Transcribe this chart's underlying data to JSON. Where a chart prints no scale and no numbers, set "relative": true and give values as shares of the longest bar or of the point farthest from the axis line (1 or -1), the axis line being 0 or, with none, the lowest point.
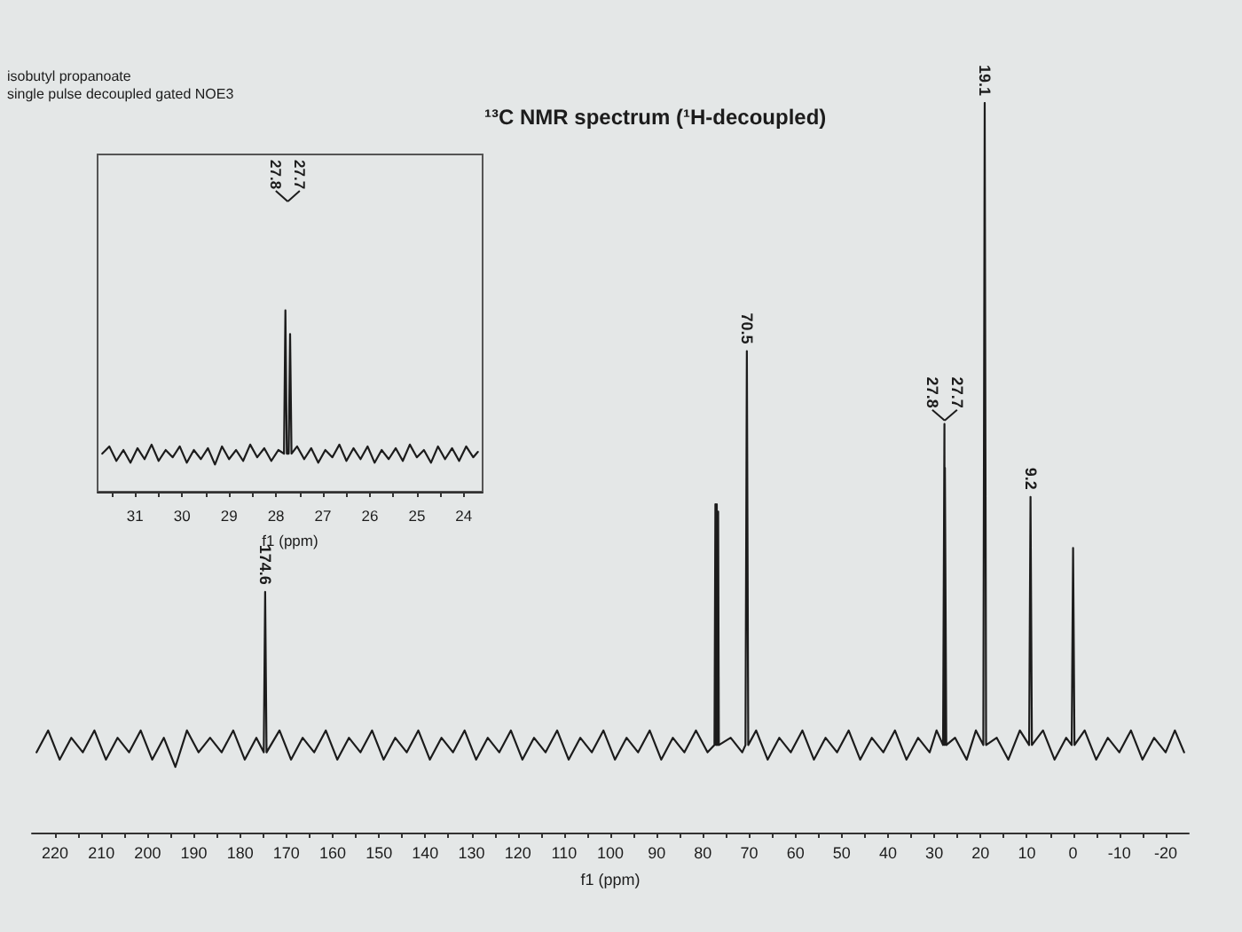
{
  "chart_data": [
    {
      "type": "line",
      "title": "¹³C NMR spectrum (¹H-decoupled)",
      "xlabel": "f1 (ppm)",
      "relative": true,
      "color": "#1c1c1c",
      "tick_labels": "x",
      "x": [
        224,
        221.5,
        219,
        216.5,
        214,
        211.5,
        209,
        206.5,
        204,
        201.5,
        199,
        196.5,
        194,
        191.5,
        189,
        186.5,
        184,
        181.5,
        179,
        176.5,
        174.9,
        174.6,
        174.3,
        171.5,
        169,
        166.5,
        164,
        161.5,
        159,
        156.5,
        154,
        151.5,
        149,
        146.5,
        144,
        141.5,
        139,
        136.5,
        134,
        131.5,
        129,
        126.5,
        124,
        121.5,
        119,
        116.5,
        114,
        111.5,
        109,
        106.5,
        104,
        101.5,
        99,
        96.5,
        94,
        91.5,
        89,
        86.5,
        84,
        81.5,
        79,
        77.5,
        77.3,
        77.15,
        77,
        76.85,
        76.7,
        76.55,
        74,
        71.5,
        70.8,
        70.5,
        70.2,
        68.5,
        66,
        63.5,
        61,
        58.5,
        56,
        53.5,
        51,
        48.5,
        46,
        43.5,
        41,
        38.5,
        36,
        33.5,
        31,
        29.5,
        28.1,
        27.8,
        27.75,
        27.7,
        27.4,
        25.5,
        23,
        21,
        19.4,
        19.1,
        18.8,
        16.5,
        14,
        11.5,
        9.5,
        9.2,
        8.9,
        6.5,
        4,
        1.5,
        0.3,
        0,
        -0.3,
        -2.5,
        -5,
        -7.5,
        -10,
        -12.5,
        -15,
        -17.5,
        -20,
        -22,
        -24
      ],
      "values": [
        0.11,
        0.14,
        0.1,
        0.13,
        0.11,
        0.14,
        0.1,
        0.13,
        0.11,
        0.14,
        0.1,
        0.13,
        0.09,
        0.14,
        0.11,
        0.13,
        0.11,
        0.14,
        0.1,
        0.13,
        0.11,
        0.33,
        0.11,
        0.14,
        0.1,
        0.13,
        0.11,
        0.14,
        0.1,
        0.13,
        0.11,
        0.14,
        0.1,
        0.13,
        0.11,
        0.14,
        0.1,
        0.13,
        0.11,
        0.14,
        0.1,
        0.13,
        0.11,
        0.14,
        0.1,
        0.13,
        0.11,
        0.14,
        0.1,
        0.13,
        0.11,
        0.14,
        0.1,
        0.13,
        0.11,
        0.14,
        0.1,
        0.13,
        0.11,
        0.14,
        0.11,
        0.12,
        0.45,
        0.12,
        0.45,
        0.12,
        0.44,
        0.12,
        0.13,
        0.11,
        0.12,
        0.66,
        0.12,
        0.14,
        0.1,
        0.13,
        0.11,
        0.14,
        0.1,
        0.13,
        0.11,
        0.14,
        0.1,
        0.13,
        0.11,
        0.14,
        0.1,
        0.13,
        0.11,
        0.14,
        0.12,
        0.56,
        0.12,
        0.5,
        0.12,
        0.13,
        0.1,
        0.14,
        0.12,
        1,
        0.12,
        0.13,
        0.1,
        0.14,
        0.12,
        0.46,
        0.12,
        0.14,
        0.1,
        0.13,
        0.12,
        0.39,
        0.12,
        0.14,
        0.1,
        0.13,
        0.11,
        0.14,
        0.1,
        0.13,
        0.11,
        0.14,
        0.11
      ],
      "xlim": [
        225,
        -25
      ],
      "xticks": [
        220,
        {
          "value": 215,
          "label": null
        },
        210,
        {
          "value": 205,
          "label": null
        },
        200,
        {
          "value": 195,
          "label": null
        },
        190,
        {
          "value": 185,
          "label": null
        },
        180,
        {
          "value": 175,
          "label": null
        },
        170,
        {
          "value": 165,
          "label": null
        },
        160,
        {
          "value": 155,
          "label": null
        },
        150,
        {
          "value": 145,
          "label": null
        },
        140,
        {
          "value": 135,
          "label": null
        },
        130,
        {
          "value": 125,
          "label": null
        },
        120,
        {
          "value": 115,
          "label": null
        },
        110,
        {
          "value": 105,
          "label": null
        },
        100,
        {
          "value": 95,
          "label": null
        },
        90,
        {
          "value": 85,
          "label": null
        },
        80,
        {
          "value": 75,
          "label": null
        },
        70,
        {
          "value": 65,
          "label": null
        },
        60,
        {
          "value": 55,
          "label": null
        },
        50,
        {
          "value": 45,
          "label": null
        },
        40,
        {
          "value": 35,
          "label": null
        },
        30,
        {
          "value": 25,
          "label": null
        },
        20,
        {
          "value": 15,
          "label": null
        },
        10,
        {
          "value": 5,
          "label": null
        },
        0,
        {
          "value": -5,
          "label": null
        },
        -10,
        {
          "value": -15,
          "label": null
        },
        -20
      ],
      "annotations": [
        "isobutyl propanoate",
        "single pulse decoupled gated NOE3",
        {
          "text": "174.6",
          "x": 174.6,
          "y": 0.33
        },
        {
          "text": "70.5",
          "x": 70.5,
          "y": 0.66
        },
        {
          "text": "27.8",
          "x": 27.8,
          "y": 0.56
        },
        {
          "text": "27.7",
          "x": 27.7,
          "y": 0.56
        },
        {
          "text": "19.1",
          "x": 19.1,
          "y": 1
        },
        {
          "text": "9.2",
          "x": 9.2,
          "y": 0.46
        }
      ]
    },
    {
      "type": "line",
      "xlabel": "f1 (ppm)",
      "relative": true,
      "color": "#1c1c1c",
      "tick_labels": "x",
      "x": [
        31.7,
        31.55,
        31.4,
        31.25,
        31.1,
        30.95,
        30.8,
        30.65,
        30.5,
        30.35,
        30.2,
        30.05,
        29.9,
        29.75,
        29.6,
        29.45,
        29.3,
        29.15,
        29,
        28.85,
        28.7,
        28.55,
        28.4,
        28.25,
        28.1,
        27.95,
        27.83,
        27.8,
        27.77,
        27.73,
        27.7,
        27.67,
        27.55,
        27.4,
        27.25,
        27.1,
        26.95,
        26.8,
        26.65,
        26.5,
        26.35,
        26.2,
        26.05,
        25.9,
        25.75,
        25.6,
        25.45,
        25.3,
        25.15,
        25,
        24.85,
        24.7,
        24.55,
        24.4,
        24.25,
        24.1,
        23.95,
        23.8,
        23.7
      ],
      "values": [
        0.21,
        0.25,
        0.17,
        0.23,
        0.16,
        0.24,
        0.18,
        0.26,
        0.17,
        0.23,
        0.19,
        0.25,
        0.16,
        0.23,
        0.18,
        0.24,
        0.15,
        0.25,
        0.18,
        0.23,
        0.17,
        0.26,
        0.19,
        0.24,
        0.17,
        0.23,
        0.21,
        1,
        0.21,
        0.21,
        0.87,
        0.21,
        0.25,
        0.18,
        0.24,
        0.16,
        0.23,
        0.19,
        0.26,
        0.17,
        0.24,
        0.18,
        0.25,
        0.16,
        0.23,
        0.18,
        0.24,
        0.17,
        0.26,
        0.19,
        0.23,
        0.16,
        0.25,
        0.18,
        0.24,
        0.17,
        0.25,
        0.19,
        0.22
      ],
      "xlim": [
        31.8,
        23.6
      ],
      "xticks": [
        {
          "value": 31.5,
          "label": null
        },
        31,
        {
          "value": 30.5,
          "label": null
        },
        30,
        {
          "value": 29.5,
          "label": null
        },
        29,
        {
          "value": 28.5,
          "label": null
        },
        28,
        {
          "value": 27.5,
          "label": null
        },
        27,
        {
          "value": 26.5,
          "label": null
        },
        26,
        {
          "value": 25.5,
          "label": null
        },
        25,
        {
          "value": 24.5,
          "label": null
        },
        24
      ],
      "annotations": [
        {
          "text": "27.8",
          "x": 27.8
        },
        {
          "text": "27.7",
          "x": 27.7
        }
      ]
    }
  ]
}
